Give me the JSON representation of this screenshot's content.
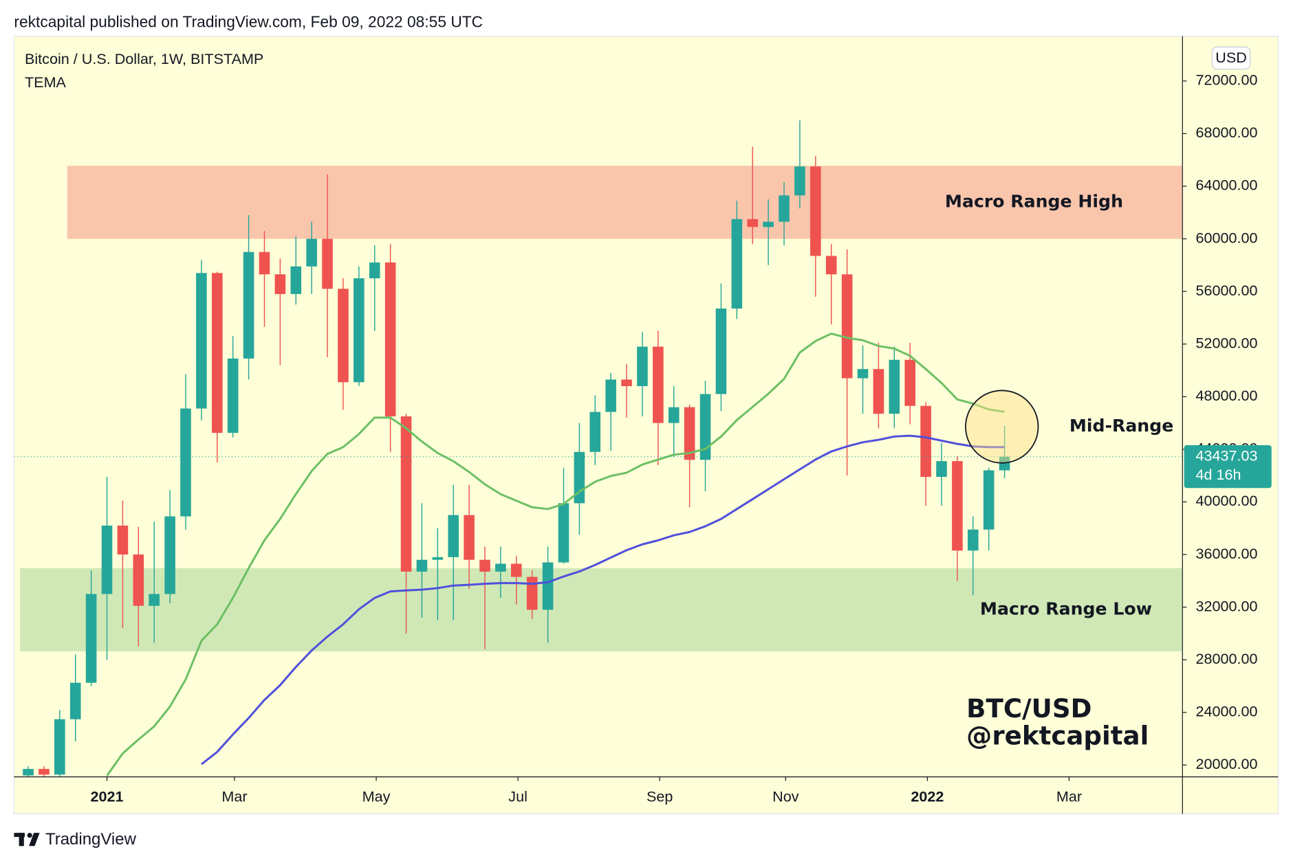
{
  "header": "rektcapital published on TradingView.com, Feb 09, 2022 08:55 UTC",
  "footer": "TradingView",
  "chart_data": {
    "type": "candlestick",
    "title": "Bitcoin / U.S. Dollar, 1W, BITSTAMP",
    "indicator": "TEMA",
    "currency": "USD",
    "background": "#fefed8",
    "up_color": "#26a69a",
    "down_color": "#ef5350",
    "grid": false,
    "open": [
      19200,
      19700,
      19270,
      23480,
      26250,
      33000,
      38200,
      36000,
      32100,
      33000,
      38900,
      47100,
      57400,
      45250,
      50900,
      59000,
      57300,
      55800,
      57900,
      60000,
      56200,
      49100,
      57000,
      58200,
      46500,
      34700,
      35600,
      35800,
      39000,
      35600,
      34700,
      35300,
      34300,
      31800,
      35400,
      39900,
      43800,
      46840,
      49300,
      48800,
      51800,
      46000,
      47200,
      43200,
      48200,
      54700,
      61500,
      60900,
      61300,
      63300,
      65500,
      58700,
      57300,
      49400,
      50100,
      46700,
      50800,
      47300,
      41900,
      43100,
      36300,
      37900,
      42400
    ],
    "high": [
      19900,
      19900,
      24200,
      28400,
      34800,
      41900,
      40100,
      38100,
      38500,
      40900,
      49700,
      58400,
      57500,
      52600,
      61800,
      60600,
      58500,
      60200,
      61300,
      64900,
      57000,
      57900,
      59500,
      59600,
      46700,
      39900,
      38000,
      41300,
      41300,
      36600,
      36600,
      35900,
      34800,
      36600,
      42600,
      46000,
      48100,
      49800,
      50500,
      52900,
      53000,
      48800,
      47400,
      49200,
      56600,
      62900,
      67000,
      63000,
      64300,
      69000,
      66300,
      59600,
      59200,
      51900,
      52100,
      51800,
      52100,
      47600,
      44500,
      43500,
      38900,
      42600,
      45800
    ],
    "low": [
      18200,
      17600,
      19000,
      21800,
      26000,
      28000,
      30400,
      29000,
      29300,
      32300,
      37900,
      46200,
      43000,
      44900,
      49300,
      53300,
      50400,
      55000,
      55800,
      51000,
      47000,
      48800,
      53000,
      43800,
      30000,
      31200,
      31000,
      31000,
      33400,
      28800,
      32700,
      32200,
      31100,
      29300,
      35300,
      37500,
      42800,
      43900,
      46400,
      46500,
      42800,
      43400,
      39600,
      40800,
      46900,
      53900,
      59600,
      58000,
      59500,
      62300,
      55600,
      53500,
      42000,
      46700,
      45600,
      45600,
      45900,
      39700,
      39700,
      34000,
      32900,
      36300,
      41800
    ],
    "close": [
      19700,
      19270,
      23480,
      26250,
      33000,
      38200,
      36000,
      32100,
      33000,
      38900,
      47100,
      57400,
      45250,
      50900,
      59000,
      57300,
      55800,
      57900,
      60000,
      56200,
      49100,
      57000,
      58200,
      46500,
      34700,
      35600,
      35800,
      39000,
      35600,
      34700,
      35300,
      34300,
      31800,
      35400,
      39900,
      43800,
      46840,
      49300,
      48800,
      51800,
      46000,
      47200,
      43200,
      48200,
      54700,
      61500,
      60900,
      61300,
      63300,
      65500,
      58700,
      57300,
      49400,
      50100,
      46700,
      50800,
      47300,
      41900,
      43100,
      36300,
      37900,
      42400,
      43437.03
    ],
    "lines": [
      {
        "color": "#6cbf64",
        "values": [
          null,
          null,
          null,
          null,
          null,
          19190,
          20880,
          21940,
          22940,
          24440,
          26510,
          29450,
          30700,
          32700,
          34960,
          37080,
          38710,
          40590,
          42340,
          43650,
          44160,
          45160,
          46410,
          46410,
          45600,
          44590,
          43720,
          43090,
          42280,
          41340,
          40590,
          40090,
          39590,
          39460,
          39840,
          40780,
          41530,
          41970,
          42220,
          42840,
          43220,
          43590,
          43720,
          44030,
          44970,
          46220,
          47220,
          48220,
          49350,
          51350,
          52230,
          52790,
          52480,
          52290,
          51850,
          51660,
          51100,
          50100,
          49040,
          47790,
          47470,
          47030,
          46850
        ]
      },
      {
        "color": "#4f4fdc",
        "values": [
          null,
          null,
          null,
          null,
          null,
          null,
          null,
          null,
          null,
          null,
          null,
          20060,
          21000,
          22320,
          23570,
          24940,
          26070,
          27450,
          28700,
          29760,
          30700,
          31830,
          32700,
          33200,
          33270,
          33330,
          33450,
          33640,
          33700,
          33770,
          33830,
          33830,
          33770,
          33890,
          34330,
          34710,
          35210,
          35770,
          36330,
          36770,
          37080,
          37460,
          37710,
          38150,
          38710,
          39460,
          40210,
          40960,
          41720,
          42470,
          43220,
          43840,
          44220,
          44530,
          44720,
          44970,
          45030,
          44910,
          44660,
          44410,
          44220,
          44160,
          44160
        ]
      }
    ],
    "last_price": 43437.03,
    "countdown": "4d 16h",
    "ylim": [
      19100,
      75400
    ],
    "yticks": [
      {
        "value": 20000,
        "label": "20000.00"
      },
      {
        "value": 24000,
        "label": "24000.00"
      },
      {
        "value": 28000,
        "label": "28000.00"
      },
      {
        "value": 32000,
        "label": "32000.00"
      },
      {
        "value": 36000,
        "label": "36000.00"
      },
      {
        "value": 40000,
        "label": "40000.00"
      },
      {
        "value": 44000,
        "label": "44000.00"
      },
      {
        "value": 48000,
        "label": "48000.00"
      },
      {
        "value": 52000,
        "label": "52000.00"
      },
      {
        "value": 56000,
        "label": "56000.00"
      },
      {
        "value": 60000,
        "label": "60000.00"
      },
      {
        "value": 64000,
        "label": "64000.00"
      },
      {
        "value": 68000,
        "label": "68000.00"
      },
      {
        "value": 72000,
        "label": "72000.00"
      }
    ],
    "xlim": [
      -0.9,
      73.3
    ],
    "xticks": [
      {
        "value": 5,
        "label": "2021"
      },
      {
        "value": 13.1,
        "label": "Mar"
      },
      {
        "value": 22.1,
        "label": "May"
      },
      {
        "value": 31.1,
        "label": "Jul"
      },
      {
        "value": 40.1,
        "label": "Sep"
      },
      {
        "value": 48.1,
        "label": "Nov"
      },
      {
        "value": 57.1,
        "label": "2022"
      },
      {
        "value": 66.1,
        "label": "Mar"
      }
    ],
    "zones": [
      {
        "label": "Macro Range High",
        "range": [
          60000,
          65550
        ],
        "color": "#f9c6ac"
      },
      {
        "label": "Macro Range Low",
        "range": [
          28640,
          34960
        ],
        "color": "#cfe8b6"
      }
    ],
    "annotations": [
      "Mid-Range"
    ],
    "watermark": [
      "BTC/USD",
      "@rektcapital"
    ]
  }
}
